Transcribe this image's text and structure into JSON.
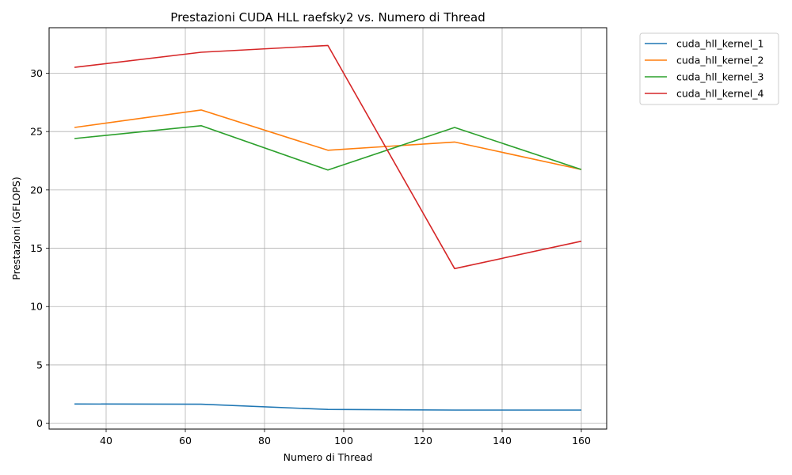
{
  "chart_data": {
    "type": "line",
    "title": "Prestazioni CUDA HLL raefsky2 vs. Numero di Thread",
    "xlabel": "Numero di Thread",
    "ylabel": "Prestazioni (GFLOPS)",
    "x": [
      32,
      64,
      96,
      128,
      160
    ],
    "xlim": [
      25.6,
      166.4
    ],
    "ylim": [
      -0.5,
      33.9
    ],
    "xticks": [
      40,
      60,
      80,
      100,
      120,
      140,
      160
    ],
    "yticks": [
      0,
      5,
      10,
      15,
      20,
      25,
      30
    ],
    "grid": true,
    "legend_position": "outside-top-right",
    "series": [
      {
        "name": "cuda_hll_kernel_1",
        "color": "#1f77b4",
        "values": [
          1.65,
          1.63,
          1.18,
          1.13,
          1.13
        ]
      },
      {
        "name": "cuda_hll_kernel_2",
        "color": "#ff7f0e",
        "values": [
          25.35,
          26.85,
          23.4,
          24.1,
          21.75
        ]
      },
      {
        "name": "cuda_hll_kernel_3",
        "color": "#2ca02c",
        "values": [
          24.4,
          25.5,
          21.7,
          25.35,
          21.75
        ]
      },
      {
        "name": "cuda_hll_kernel_4",
        "color": "#d62728",
        "values": [
          30.5,
          31.8,
          32.38,
          13.25,
          15.6
        ]
      }
    ]
  }
}
